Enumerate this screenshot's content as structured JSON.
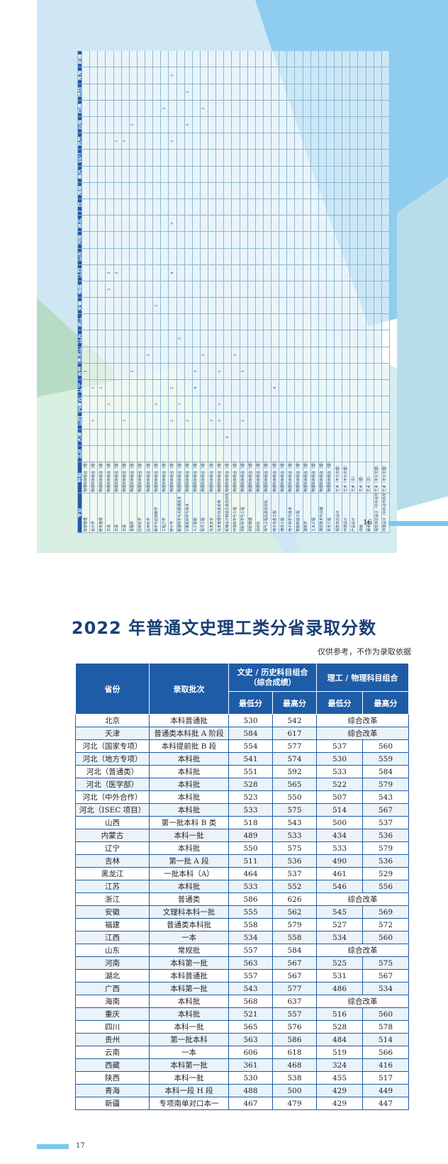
{
  "page16": {
    "page_number": "16",
    "headers": [
      "专业",
      "科类",
      "北京",
      "天津",
      "山西",
      "内蒙古",
      "辽宁",
      "吉林",
      "黑龙江",
      "江苏",
      "浙江",
      "安徽",
      "福建",
      "江西",
      "山东",
      "河南",
      "湖北",
      "广西",
      "海南",
      "重庆",
      "四川",
      "贵州",
      "云南",
      "西藏",
      "陕西",
      "青海",
      "新疆"
    ],
    "rows": [
      [
        "旅游管理",
        "物理科目组合（理）",
        "",
        "",
        "",
        "",
        "",
        "3",
        "",
        "",
        "",
        "",
        "",
        "",
        "",
        "",
        "",
        "",
        "",
        "",
        "",
        "",
        "",
        "",
        "",
        "",
        ""
      ],
      [
        "会计学",
        "物理科目组合（理）",
        "",
        "",
        "3",
        "",
        "2",
        "",
        "",
        "",
        "",
        "",
        "",
        "",
        "",
        "",
        "",
        "",
        "",
        "",
        "",
        "",
        "",
        "",
        "",
        "",
        ""
      ],
      [
        "财务管理",
        "物理科目组合（理）",
        "",
        "",
        "",
        "",
        "3",
        "",
        "",
        "",
        "",
        "",
        "",
        "",
        "",
        "",
        "",
        "",
        "",
        "",
        "",
        "",
        "",
        "",
        "",
        "",
        ""
      ],
      [
        "日语",
        "物理科目组合（理）",
        "",
        "",
        "",
        "3",
        "",
        "",
        "",
        "",
        "",
        "",
        "2",
        "3",
        "",
        "",
        "",
        "",
        "",
        "",
        "",
        "",
        "",
        "",
        "",
        "",
        ""
      ],
      [
        "日语",
        "物理科目组合（理）",
        "",
        "",
        "",
        "",
        "",
        "",
        "",
        "",
        "",
        "",
        "",
        "3",
        "",
        "",
        "",
        "",
        "",
        "",
        "",
        "3",
        "",
        "",
        "",
        "",
        ""
      ],
      [
        "日语",
        "物理科目组合（理）",
        "",
        "",
        "3",
        "",
        "",
        "",
        "",
        "",
        "",
        "",
        "",
        "",
        "",
        "",
        "",
        "",
        "",
        "",
        "",
        "3",
        "",
        "",
        "",
        "",
        ""
      ],
      [
        "金融学",
        "物理科目组合（理）",
        "",
        "",
        "",
        "",
        "",
        "3",
        "",
        "",
        "",
        "",
        "",
        "",
        "",
        "",
        "",
        "",
        "",
        "",
        "",
        "",
        "3",
        "",
        "",
        "",
        ""
      ],
      [
        "应用化学",
        "物理科目组合（理）",
        "",
        "",
        "",
        "",
        "",
        "",
        "",
        "",
        "",
        "",
        "",
        "",
        "",
        "",
        "",
        "",
        "",
        "",
        "",
        "",
        "",
        "",
        "",
        "",
        ""
      ],
      [
        "应用化学",
        "物理科目组合（理）",
        "",
        "",
        "",
        "",
        "",
        "",
        "3",
        "",
        "",
        "",
        "",
        "",
        "",
        "",
        "",
        "",
        "",
        "",
        "",
        "",
        "",
        "",
        "",
        "",
        ""
      ],
      [
        "数学与应用数学",
        "物理科目组合（理）",
        "",
        "",
        "",
        "3",
        "",
        "",
        "",
        "",
        "",
        "2",
        "",
        "",
        "",
        "",
        "",
        "",
        "",
        "",
        "",
        "",
        "",
        "",
        "",
        "",
        ""
      ],
      [
        "工程力学",
        "物理科目组合（理）",
        "",
        "",
        "",
        "",
        "",
        "",
        "",
        "",
        "",
        "",
        "",
        "",
        "",
        "",
        "",
        "",
        "",
        "",
        "",
        "",
        "",
        "3",
        "",
        "",
        ""
      ],
      [
        "统计学",
        "物理科目组合（理）",
        "",
        "",
        "2",
        "",
        "5",
        "",
        "",
        "",
        "",
        "",
        "",
        "4",
        "",
        "",
        "3",
        "",
        "",
        "",
        "",
        "3",
        "",
        "",
        "",
        "3",
        ""
      ],
      [
        "数据科学与大数据技术",
        "物理科目组合（理）",
        "",
        "",
        "",
        "3",
        "",
        "",
        "",
        "5",
        "",
        "",
        "",
        "",
        "",
        "",
        "",
        "",
        "",
        "",
        "",
        "",
        "",
        "",
        "",
        "",
        ""
      ],
      [
        "计算机科学与技术",
        "物理科目组合（理）",
        "",
        "",
        "2",
        "",
        "",
        "",
        "",
        "",
        "",
        "",
        "",
        "",
        "",
        "",
        "",
        "",
        "",
        "",
        "",
        "",
        "3",
        "",
        "2",
        "",
        ""
      ],
      [
        "人工智能",
        "物理科目组合（理）",
        "",
        "",
        "",
        "",
        "4",
        "3",
        "",
        "",
        "",
        "",
        "",
        "",
        "",
        "",
        "",
        "",
        "",
        "",
        "",
        "",
        "",
        "",
        "",
        "",
        ""
      ],
      [
        "软件工程",
        "物理科目组合（理）",
        "",
        "",
        "",
        "",
        "",
        "",
        "3",
        "",
        "",
        "",
        "",
        "",
        "",
        "",
        "",
        "",
        "",
        "",
        "",
        "",
        "",
        "3",
        "",
        "",
        ""
      ],
      [
        "信息安全",
        "物理科目组合（理）",
        "",
        "",
        "3",
        "",
        "",
        "",
        "",
        "",
        "",
        "",
        "",
        "",
        "",
        "",
        "",
        "",
        "",
        "",
        "",
        "",
        "",
        "",
        "",
        "",
        ""
      ],
      [
        "信息管理与信息系统",
        "物理科目组合（理）",
        "",
        "",
        "3",
        "3",
        "",
        "2",
        "",
        "",
        "",
        "",
        "",
        "",
        "",
        "",
        "",
        "",
        "",
        "",
        "",
        "",
        "",
        "",
        "",
        "",
        ""
      ],
      [
        "机械设计制造及其自动化",
        "物理科目组合（理）",
        "",
        "6",
        "",
        "",
        "",
        "",
        "",
        "",
        "",
        "",
        "",
        "",
        "",
        "",
        "",
        "",
        "",
        "",
        "",
        "",
        "",
        "",
        "",
        "",
        ""
      ],
      [
        "环境科学与工程",
        "物理科目组合（理）",
        "",
        "",
        "",
        "",
        "",
        "",
        "3",
        "",
        "",
        "",
        "",
        "",
        "",
        "",
        "",
        "",
        "",
        "",
        "",
        "",
        "",
        "",
        "",
        "",
        ""
      ],
      [
        "材料科学与工程",
        "物理科目组合（理）",
        "",
        "",
        "2",
        "",
        "",
        "3",
        "",
        "",
        "",
        "",
        "",
        "",
        "",
        "",
        "",
        "",
        "",
        "",
        "",
        "",
        "",
        "",
        "",
        "",
        ""
      ],
      [
        "材料物理",
        "物理科目组合（理）",
        "",
        "",
        "",
        "",
        "",
        "",
        "",
        "",
        "",
        "",
        "",
        "",
        "",
        "",
        "",
        "",
        "",
        "",
        "",
        "",
        "",
        "",
        "",
        "",
        ""
      ],
      [
        "自动化",
        "物理科目组合（理）",
        "",
        "",
        "",
        "",
        "",
        "",
        "",
        "",
        "",
        "",
        "",
        "",
        "",
        "",
        "",
        "",
        "",
        "",
        "",
        "",
        "",
        "",
        "",
        "",
        ""
      ],
      [
        "电气工程及其自动化",
        "物理科目组合（理）",
        "",
        "",
        "",
        "",
        "",
        "",
        "",
        "",
        "",
        "",
        "",
        "",
        "",
        "",
        "",
        "",
        "",
        "",
        "",
        "",
        "",
        "",
        "",
        "",
        ""
      ],
      [
        "电子信息工程",
        "物理科目组合（理）",
        "",
        "",
        "",
        "",
        "4",
        "",
        "",
        "",
        "",
        "",
        "",
        "",
        "",
        "",
        "",
        "",
        "",
        "",
        "",
        "",
        "",
        "",
        "",
        "",
        ""
      ],
      [
        "通信工程",
        "物理科目组合（理）",
        "",
        "",
        "",
        "",
        "",
        "",
        "",
        "",
        "",
        "",
        "",
        "",
        "",
        "",
        "",
        "",
        "",
        "",
        "",
        "",
        "",
        "",
        "",
        "",
        ""
      ],
      [
        "电子科学与技术",
        "物理科目组合（理）",
        "",
        "",
        "",
        "",
        "",
        "",
        "",
        "",
        "",
        "",
        "",
        "",
        "",
        "",
        "",
        "",
        "",
        "",
        "",
        "",
        "",
        "",
        "",
        "",
        ""
      ],
      [
        "智能制造工程",
        "物理科目组合（理）",
        "",
        "",
        "",
        "",
        "",
        "",
        "",
        "",
        "",
        "",
        "",
        "",
        "",
        "",
        "",
        "",
        "",
        "",
        "",
        "",
        "",
        "",
        "",
        "",
        ""
      ],
      [
        "建筑学",
        "物理科目组合（理）",
        "",
        "",
        "",
        "",
        "",
        "",
        "",
        "",
        "",
        "",
        "",
        "",
        "",
        "",
        "",
        "",
        "",
        "",
        "",
        "",
        "",
        "",
        "",
        "",
        ""
      ],
      [
        "土木工程",
        "物理科目组合（理）",
        "",
        "",
        "",
        "",
        "",
        "",
        "",
        "",
        "",
        "",
        "",
        "",
        "",
        "",
        "",
        "",
        "",
        "",
        "",
        "",
        "",
        "",
        "",
        "",
        ""
      ],
      [
        "测控技术与仪器",
        "物理科目组合（理）",
        "",
        "",
        "",
        "",
        "",
        "",
        "",
        "",
        "",
        "",
        "",
        "",
        "",
        "",
        "",
        "",
        "",
        "",
        "",
        "",
        "",
        "",
        "",
        "",
        ""
      ],
      [
        "安全工程",
        "物理科目组合（理）",
        "",
        "",
        "",
        "",
        "",
        "",
        "",
        "",
        "",
        "",
        "",
        "",
        "",
        "",
        "",
        "",
        "",
        "",
        "",
        "",
        "",
        "",
        "",
        "",
        ""
      ],
      [
        "视觉传达设计",
        "艺术（不分文理）",
        "",
        "",
        "",
        "",
        "",
        "",
        "",
        "",
        "",
        "",
        "",
        "",
        "",
        "",
        "",
        "",
        "",
        "",
        "",
        "",
        "",
        "",
        "",
        "",
        ""
      ],
      [
        "环境设计",
        "艺术（不分文理）",
        "",
        "",
        "",
        "",
        "",
        "",
        "",
        "",
        "",
        "",
        "",
        "",
        "",
        "",
        "",
        "",
        "",
        "",
        "",
        "",
        "",
        "",
        "",
        "",
        ""
      ],
      [
        "产品设计",
        "艺术（文）",
        "",
        "",
        "",
        "",
        "",
        "",
        "",
        "",
        "",
        "",
        "",
        "",
        "",
        "",
        "",
        "",
        "",
        "",
        "",
        "",
        "",
        "",
        "",
        "",
        ""
      ],
      [
        "动画",
        "艺术（理）",
        "",
        "",
        "",
        "",
        "",
        "",
        "",
        "",
        "",
        "",
        "",
        "",
        "",
        "",
        "",
        "",
        "",
        "",
        "",
        "",
        "",
        "",
        "",
        "",
        ""
      ],
      [
        "美术学",
        "艺术（文）",
        "",
        "",
        "",
        "",
        "",
        "",
        "",
        "",
        "",
        "",
        "",
        "",
        "",
        "",
        "",
        "",
        "",
        "",
        "",
        "",
        "",
        "",
        "",
        "",
        ""
      ],
      [
        "视觉传达设计（中外合作办学）",
        "艺术（不分文理）",
        "",
        "",
        "",
        "",
        "",
        "",
        "",
        "",
        "",
        "",
        "",
        "",
        "",
        "",
        "",
        "",
        "",
        "",
        "",
        "",
        "",
        "",
        "",
        "",
        ""
      ],
      [
        "环境设计（中外合作办学）",
        "艺术（不分文理）",
        "",
        "",
        "",
        "",
        "",
        "",
        "",
        "",
        "",
        "",
        "",
        "",
        "",
        "",
        "",
        "",
        "",
        "",
        "",
        "",
        "",
        "",
        "",
        "",
        ""
      ]
    ]
  },
  "page17": {
    "title": "2022 年普通文史理工类分省录取分数",
    "note": "仅供参考，不作为录取依据",
    "page_number": "17",
    "headers": {
      "province": "省份",
      "batch": "录取批次",
      "arts_group": "文史 / 历史科目组合（综合成绩）",
      "sci_group": "理工 / 物理科目组合",
      "min": "最低分",
      "max": "最高分"
    },
    "rows": [
      {
        "province": "北京",
        "batch": "本科普通批",
        "a_min": "530",
        "a_max": "542",
        "reform": "综合改革"
      },
      {
        "province": "天津",
        "batch": "普通类本科批 A 阶段",
        "a_min": "584",
        "a_max": "617",
        "reform": "综合改革"
      },
      {
        "province": "河北（国家专项）",
        "batch": "本科提前批 B 段",
        "a_min": "554",
        "a_max": "577",
        "s_min": "537",
        "s_max": "560"
      },
      {
        "province": "河北（地方专项）",
        "batch": "本科批",
        "a_min": "541",
        "a_max": "574",
        "s_min": "530",
        "s_max": "559"
      },
      {
        "province": "河北（普通类）",
        "batch": "本科批",
        "a_min": "551",
        "a_max": "592",
        "s_min": "533",
        "s_max": "584"
      },
      {
        "province": "河北（医学部）",
        "batch": "本科批",
        "a_min": "528",
        "a_max": "565",
        "s_min": "522",
        "s_max": "579"
      },
      {
        "province": "河北（中外合作）",
        "batch": "本科批",
        "a_min": "523",
        "a_max": "550",
        "s_min": "507",
        "s_max": "543"
      },
      {
        "province": "河北（ISEC 项目）",
        "batch": "本科批",
        "a_min": "533",
        "a_max": "575",
        "s_min": "514",
        "s_max": "567"
      },
      {
        "province": "山西",
        "batch": "第一批本科 B 类",
        "a_min": "518",
        "a_max": "543",
        "s_min": "500",
        "s_max": "537"
      },
      {
        "province": "内蒙古",
        "batch": "本科一批",
        "a_min": "489",
        "a_max": "533",
        "s_min": "434",
        "s_max": "536"
      },
      {
        "province": "辽宁",
        "batch": "本科批",
        "a_min": "550",
        "a_max": "575",
        "s_min": "533",
        "s_max": "579"
      },
      {
        "province": "吉林",
        "batch": "第一批 A 段",
        "a_min": "511",
        "a_max": "536",
        "s_min": "490",
        "s_max": "536"
      },
      {
        "province": "黑龙江",
        "batch": "一批本科（A）",
        "a_min": "464",
        "a_max": "537",
        "s_min": "461",
        "s_max": "529"
      },
      {
        "province": "江苏",
        "batch": "本科批",
        "a_min": "533",
        "a_max": "552",
        "s_min": "546",
        "s_max": "556"
      },
      {
        "province": "浙江",
        "batch": "普通类",
        "a_min": "586",
        "a_max": "626",
        "reform": "综合改革"
      },
      {
        "province": "安徽",
        "batch": "文理科本科一批",
        "a_min": "555",
        "a_max": "562",
        "s_min": "545",
        "s_max": "569"
      },
      {
        "province": "福建",
        "batch": "普通类本科批",
        "a_min": "558",
        "a_max": "579",
        "s_min": "527",
        "s_max": "572"
      },
      {
        "province": "江西",
        "batch": "一本",
        "a_min": "534",
        "a_max": "558",
        "s_min": "534",
        "s_max": "560"
      },
      {
        "province": "山东",
        "batch": "常规批",
        "a_min": "557",
        "a_max": "584",
        "reform": "综合改革"
      },
      {
        "province": "河南",
        "batch": "本科第一批",
        "a_min": "563",
        "a_max": "567",
        "s_min": "525",
        "s_max": "575"
      },
      {
        "province": "湖北",
        "batch": "本科普通批",
        "a_min": "557",
        "a_max": "567",
        "s_min": "531",
        "s_max": "567"
      },
      {
        "province": "广西",
        "batch": "本科第一批",
        "a_min": "543",
        "a_max": "577",
        "s_min": "486",
        "s_max": "534"
      },
      {
        "province": "海南",
        "batch": "本科批",
        "a_min": "568",
        "a_max": "637",
        "reform": "综合改革"
      },
      {
        "province": "重庆",
        "batch": "本科批",
        "a_min": "521",
        "a_max": "557",
        "s_min": "516",
        "s_max": "560"
      },
      {
        "province": "四川",
        "batch": "本科一批",
        "a_min": "565",
        "a_max": "576",
        "s_min": "528",
        "s_max": "578"
      },
      {
        "province": "贵州",
        "batch": "第一批本科",
        "a_min": "563",
        "a_max": "586",
        "s_min": "484",
        "s_max": "514"
      },
      {
        "province": "云南",
        "batch": "一本",
        "a_min": "606",
        "a_max": "618",
        "s_min": "519",
        "s_max": "566"
      },
      {
        "province": "西藏",
        "batch": "本科第一批",
        "a_min": "361",
        "a_max": "468",
        "s_min": "324",
        "s_max": "416"
      },
      {
        "province": "陕西",
        "batch": "本科一批",
        "a_min": "530",
        "a_max": "538",
        "s_min": "455",
        "s_max": "517"
      },
      {
        "province": "青海",
        "batch": "本科一段 H 段",
        "a_min": "488",
        "a_max": "500",
        "s_min": "429",
        "s_max": "449"
      },
      {
        "province": "新疆",
        "batch": "专项南单对口本一",
        "a_min": "467",
        "a_max": "479",
        "s_min": "429",
        "s_max": "447"
      }
    ]
  }
}
